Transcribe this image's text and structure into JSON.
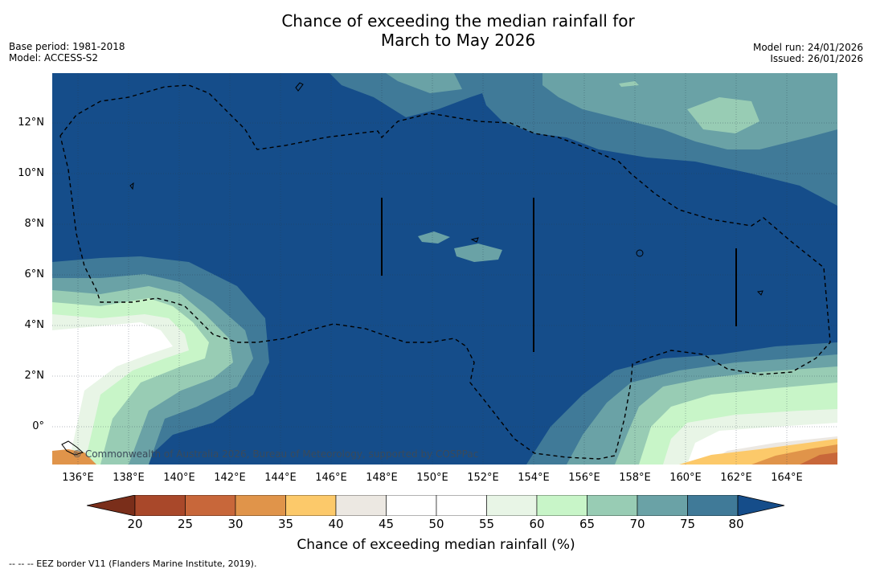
{
  "title_line1": "Chance of exceeding the median rainfall for",
  "title_line2": "March to May 2026",
  "meta_left": {
    "base_period": "Base period: 1981-2018",
    "model": "Model: ACCESS-S2"
  },
  "meta_right": {
    "model_run": "Model run: 24/01/2026",
    "issued": "Issued: 26/01/2026"
  },
  "map": {
    "lat_labels": [
      "12°N",
      "10°N",
      "8°N",
      "6°N",
      "4°N",
      "2°N",
      "0°"
    ],
    "lon_labels": [
      "136°E",
      "138°E",
      "140°E",
      "142°E",
      "144°E",
      "146°E",
      "148°E",
      "150°E",
      "152°E",
      "154°E",
      "156°E",
      "158°E",
      "160°E",
      "162°E",
      "164°E"
    ],
    "credit": "© Commonwealth of Australia 2026, Bureau of Meteorology, supported by COSPPac",
    "extent": {
      "lon_min": 135,
      "lon_max": 166,
      "lat_min": -1.5,
      "lat_max": 14
    }
  },
  "colorbar": {
    "ticks": [
      "20",
      "25",
      "30",
      "35",
      "40",
      "45",
      "50",
      "55",
      "60",
      "65",
      "70",
      "75",
      "80"
    ],
    "colors": [
      "#7a2e1a",
      "#a9482a",
      "#c8673a",
      "#e0944a",
      "#fcc96a",
      "#ece8e2",
      "#ffffff",
      "#ffffff",
      "#e8f5e6",
      "#c8f5c8",
      "#98ccb4",
      "#6aa2a6",
      "#407a98",
      "#154d8a"
    ],
    "label": "Chance of exceeding median rainfall (%)"
  },
  "footnote": "--  --  -- EEZ border V11 (Flanders Marine Institute, 2019)."
}
